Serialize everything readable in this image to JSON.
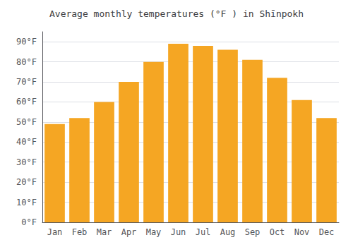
{
  "chart_data": {
    "type": "bar",
    "title": "Average monthly temperatures (°F ) in Shīnpokh",
    "categories": [
      "Jan",
      "Feb",
      "Mar",
      "Apr",
      "May",
      "Jun",
      "Jul",
      "Aug",
      "Sep",
      "Oct",
      "Nov",
      "Dec"
    ],
    "values": [
      49,
      52,
      60,
      70,
      80,
      89,
      88,
      86,
      81,
      72,
      61,
      52
    ],
    "color": "#F5A623",
    "ylim": [
      0,
      95
    ],
    "yticks": [
      {
        "value": 0,
        "label": "0°F"
      },
      {
        "value": 10,
        "label": "10°F"
      },
      {
        "value": 20,
        "label": "20°F"
      },
      {
        "value": 30,
        "label": "30°F"
      },
      {
        "value": 40,
        "label": "40°F"
      },
      {
        "value": 50,
        "label": "50°F"
      },
      {
        "value": 60,
        "label": "60°F"
      },
      {
        "value": 70,
        "label": "70°F"
      },
      {
        "value": 80,
        "label": "80°F"
      },
      {
        "value": 90,
        "label": "90°F"
      }
    ],
    "grid": true
  }
}
